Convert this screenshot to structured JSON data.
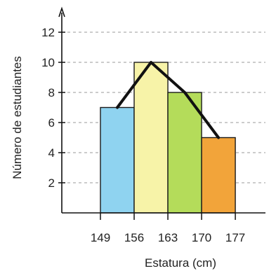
{
  "chart_data": {
    "type": "bar",
    "title": "",
    "xlabel": "Estatura (cm)",
    "ylabel": "Número de estudiantes",
    "x_ticks": [
      "149",
      "156",
      "163",
      "170",
      "177"
    ],
    "y_ticks": [
      2,
      4,
      6,
      8,
      10,
      12
    ],
    "ylim": [
      0,
      13
    ],
    "intervals": [
      {
        "from": 149,
        "to": 156,
        "value": 7,
        "color": "#8fd3f0"
      },
      {
        "from": 156,
        "to": 163,
        "value": 10,
        "color": "#f7f3a8"
      },
      {
        "from": 163,
        "to": 170,
        "value": 8,
        "color": "#b4dc5a"
      },
      {
        "from": 170,
        "to": 177,
        "value": 5,
        "color": "#f2a43a"
      }
    ],
    "polygon": [
      {
        "x": 152.5,
        "y": 7
      },
      {
        "x": 159.5,
        "y": 10
      },
      {
        "x": 166.5,
        "y": 8
      },
      {
        "x": 173.5,
        "y": 5
      }
    ],
    "grid": true
  }
}
